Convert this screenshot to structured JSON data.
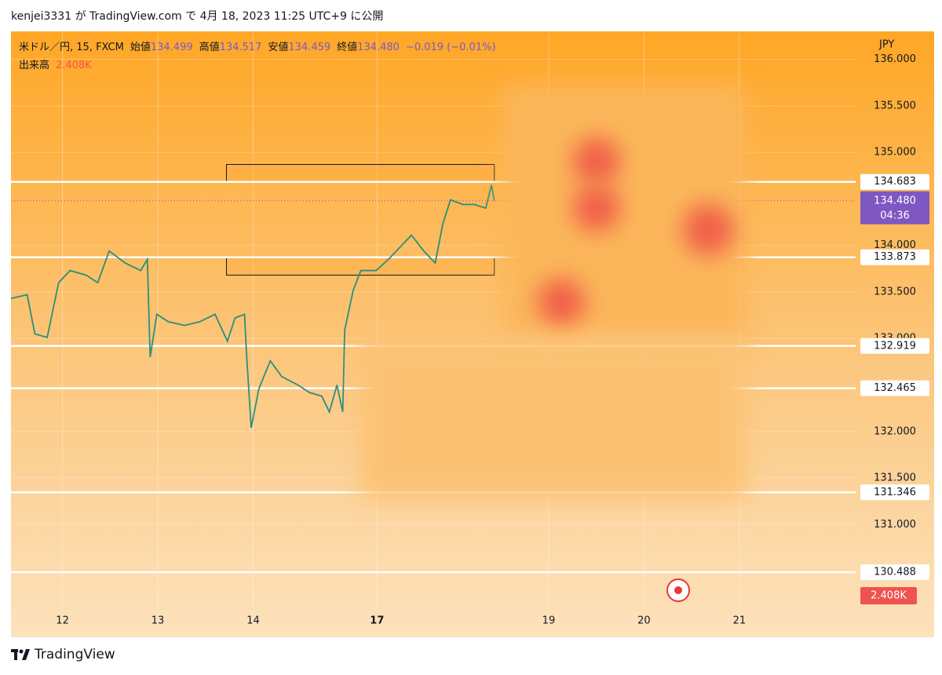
{
  "publish_info": "kenjei3331 が TradingView.com で 4月 18, 2023 11:25 UTC+9 に公開",
  "footer": "TradingView",
  "header": {
    "symbol": "米ドル／円, 15, FXCM",
    "fields": [
      {
        "label": "始値",
        "value": "134.499"
      },
      {
        "label": "高値",
        "value": "134.517"
      },
      {
        "label": "安値",
        "value": "134.459"
      },
      {
        "label": "終値",
        "value": "134.480"
      }
    ],
    "change": "−0.019 (−0.01%)",
    "volume_label": "出来高",
    "volume_value": "2.408K"
  },
  "chart_data": {
    "type": "line",
    "currency": "JPY",
    "color": "#2a8f7f",
    "x": [
      -0.54,
      -0.37,
      -0.29,
      -0.16,
      -0.04,
      0.08,
      0.25,
      0.37,
      0.49,
      0.66,
      0.82,
      0.89,
      0.92,
      0.99,
      1.11,
      1.28,
      1.44,
      1.6,
      1.73,
      1.81,
      1.91,
      1.93,
      1.98,
      2.06,
      2.18,
      2.3,
      2.47,
      2.59,
      2.72,
      2.8,
      2.88,
      2.94,
      2.96,
      3.05,
      3.13,
      3.29,
      3.42,
      3.54,
      3.66,
      3.79,
      3.91,
      3.99,
      4.07,
      4.2,
      4.32,
      4.44,
      4.5,
      4.53
    ],
    "values": [
      133.43,
      133.47,
      133.05,
      133.01,
      133.6,
      133.73,
      133.68,
      133.6,
      133.94,
      133.81,
      133.73,
      133.85,
      132.8,
      133.26,
      133.18,
      133.14,
      133.18,
      133.26,
      132.97,
      133.22,
      133.26,
      132.84,
      132.04,
      132.46,
      132.76,
      132.59,
      132.5,
      132.42,
      132.38,
      132.21,
      132.5,
      132.21,
      133.09,
      133.52,
      133.73,
      133.73,
      133.85,
      133.98,
      134.11,
      133.94,
      133.81,
      134.23,
      134.49,
      134.44,
      134.44,
      134.4,
      134.65,
      134.48
    ],
    "xlim": [
      -0.54,
      8.32
    ],
    "xticks": [
      {
        "value": 0,
        "label": "12"
      },
      {
        "value": 1,
        "label": "13"
      },
      {
        "value": 2,
        "label": "14"
      },
      {
        "value": 3.3,
        "label": "17"
      },
      {
        "value": 5.1,
        "label": "19"
      },
      {
        "value": 6.1,
        "label": "20"
      },
      {
        "value": 7.1,
        "label": "21"
      }
    ],
    "ylim": [
      130.1,
      136.3
    ],
    "yticks": [
      {
        "value": 136,
        "label": "136.000"
      },
      {
        "value": 135.5,
        "label": "135.500"
      },
      {
        "value": 135,
        "label": "135.000"
      },
      {
        "value": 134,
        "label": "134.000"
      },
      {
        "value": 133.5,
        "label": "133.500"
      },
      {
        "value": 133,
        "label": "133.000"
      },
      {
        "value": 132,
        "label": "132.000"
      },
      {
        "value": 131.5,
        "label": "131.500"
      },
      {
        "value": 131,
        "label": "131.000"
      }
    ],
    "levels": [
      {
        "value": 134.683,
        "label": "134.683"
      },
      {
        "value": 133.873,
        "label": "133.873"
      },
      {
        "value": 132.919,
        "label": "132.919"
      },
      {
        "value": 132.465,
        "label": "132.465"
      },
      {
        "value": 131.346,
        "label": "131.346"
      },
      {
        "value": 130.488,
        "label": "130.488"
      }
    ],
    "zones": [
      {
        "x": [
          1.72,
          4.53
        ],
        "y": [
          134.683,
          134.87
        ]
      },
      {
        "x": [
          1.72,
          4.53
        ],
        "y": [
          133.873,
          133.68
        ]
      }
    ],
    "last_price": {
      "value": 134.48,
      "label": "134.480"
    },
    "countdown": "04:36"
  }
}
